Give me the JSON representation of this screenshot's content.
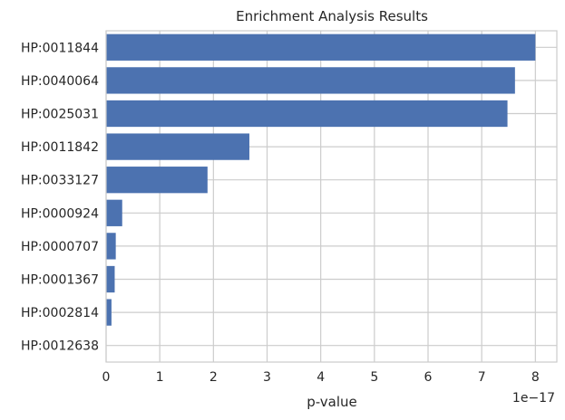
{
  "chart_data": {
    "type": "bar",
    "orientation": "horizontal",
    "title": "Enrichment Analysis Results",
    "xlabel": "p-value",
    "ylabel": "",
    "x_scale_label": "1e−17",
    "xlim": [
      0,
      8.4
    ],
    "x_ticks": [
      0,
      1,
      2,
      3,
      4,
      5,
      6,
      7,
      8
    ],
    "x_tick_labels": [
      "0",
      "1",
      "2",
      "3",
      "4",
      "5",
      "6",
      "7",
      "8"
    ],
    "grid": true,
    "bar_color": "#4c72b0",
    "categories": [
      "HP:0011844",
      "HP:0040064",
      "HP:0025031",
      "HP:0011842",
      "HP:0033127",
      "HP:0000924",
      "HP:0000707",
      "HP:0001367",
      "HP:0002814",
      "HP:0012638"
    ],
    "values": [
      8.0,
      7.62,
      7.48,
      2.67,
      1.89,
      0.3,
      0.18,
      0.16,
      0.1,
      0.0
    ]
  }
}
